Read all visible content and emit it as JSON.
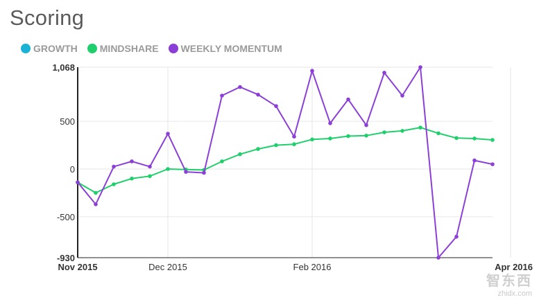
{
  "page": {
    "title": "Scoring"
  },
  "legend": [
    {
      "label": "GROWTH",
      "color": "#1ab3d6"
    },
    {
      "label": "MINDSHARE",
      "color": "#1fcf6b"
    },
    {
      "label": "WEEKLY MOMENTUM",
      "color": "#8c3fd6"
    }
  ],
  "watermark": {
    "logo": "智东西",
    "url": "zhidx.com"
  },
  "chart_data": {
    "type": "line",
    "title": "Scoring",
    "ylim": [
      -930,
      1068
    ],
    "yticks": [
      {
        "value": 1068,
        "label": "1,068"
      },
      {
        "value": 500,
        "label": "500"
      },
      {
        "value": 0,
        "label": "0"
      },
      {
        "value": -500,
        "label": "-500"
      },
      {
        "value": -930,
        "label": "-930"
      }
    ],
    "xticks": [
      {
        "index": 0,
        "label": "Nov 2015"
      },
      {
        "index": 5,
        "label": "Dec 2015"
      },
      {
        "index": 13,
        "label": "Feb 2016"
      },
      {
        "index": 24,
        "label": "Apr 2016"
      }
    ],
    "grid": true,
    "legend_position": "top-left",
    "series": [
      {
        "name": "MINDSHARE",
        "color": "#1fcf6b",
        "values": [
          -140,
          -250,
          -160,
          -100,
          -75,
          0,
          -5,
          -10,
          80,
          155,
          210,
          250,
          260,
          310,
          320,
          345,
          350,
          385,
          400,
          435,
          375,
          325,
          320,
          305
        ]
      },
      {
        "name": "WEEKLY MOMENTUM",
        "color": "#8c3fd6",
        "values": [
          -140,
          -370,
          25,
          80,
          25,
          370,
          -30,
          -40,
          770,
          860,
          780,
          660,
          340,
          1030,
          480,
          730,
          460,
          1010,
          770,
          1068,
          -930,
          -710,
          90,
          50
        ]
      }
    ]
  }
}
